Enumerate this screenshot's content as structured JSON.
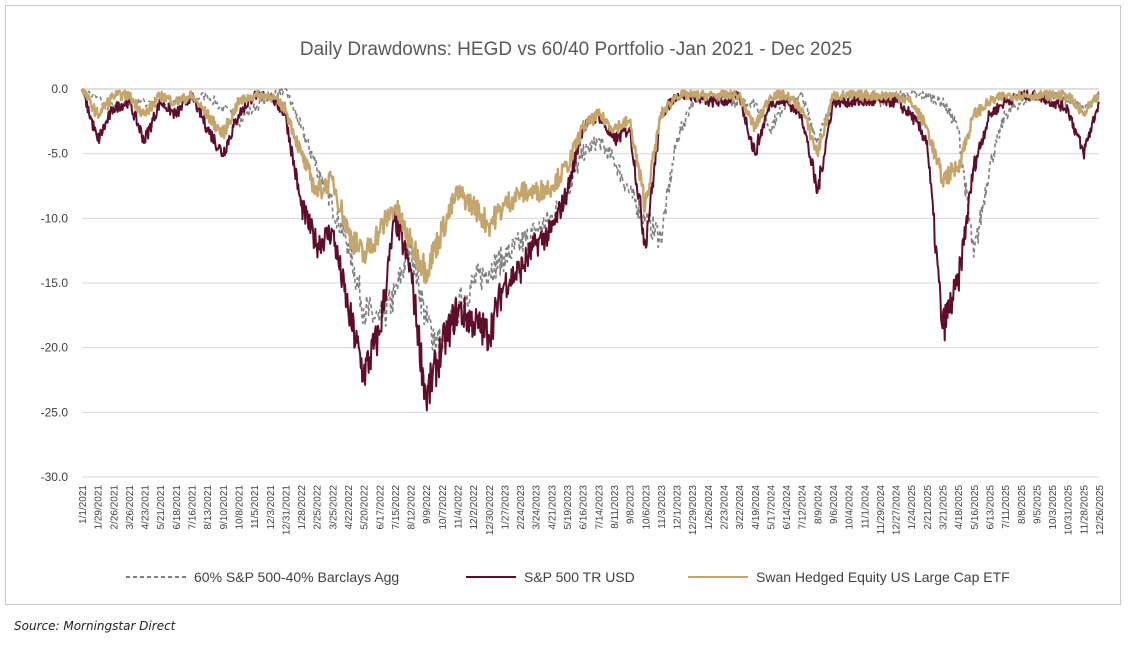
{
  "chart_data": {
    "type": "line",
    "title": "Daily Drawdowns: HEGD vs 60/40 Portfolio -Jan 2021  - Dec 2025",
    "xlabel": "",
    "ylabel": "",
    "ylim": [
      -30.0,
      0.0
    ],
    "yticks": [
      "0.0",
      "-5.0",
      "-10.0",
      "-15.0",
      "-20.0",
      "-25.0",
      "-30.0"
    ],
    "grid": true,
    "legend_position": "bottom",
    "x_tick_labels": [
      "1/1/2021",
      "1/29/2021",
      "2/26/2021",
      "3/26/2021",
      "4/23/2021",
      "5/21/2021",
      "6/18/2021",
      "7/16/2021",
      "8/13/2021",
      "9/10/2021",
      "10/8/2021",
      "11/5/2021",
      "12/3/2021",
      "12/31/2021",
      "1/28/2022",
      "2/25/2022",
      "3/25/2022",
      "4/22/2022",
      "5/20/2022",
      "6/17/2022",
      "7/15/2022",
      "8/12/2022",
      "9/9/2022",
      "10/7/2022",
      "11/4/2022",
      "12/2/2022",
      "12/30/2022",
      "1/27/2023",
      "2/24/2023",
      "3/24/2023",
      "4/21/2023",
      "5/19/2023",
      "6/16/2023",
      "7/14/2023",
      "8/11/2023",
      "9/8/2023",
      "10/6/2023",
      "11/3/2023",
      "12/1/2023",
      "12/29/2023",
      "1/26/2024",
      "2/23/2024",
      "3/22/2024",
      "4/19/2024",
      "5/17/2024",
      "6/14/2024",
      "7/12/2024",
      "8/9/2024",
      "9/6/2024",
      "10/4/2024",
      "11/1/2024",
      "11/29/2024",
      "12/27/2024",
      "1/24/2025",
      "2/21/2025",
      "3/21/2025",
      "4/18/2025",
      "5/16/2025",
      "6/13/2025",
      "7/11/2025",
      "8/8/2025",
      "9/5/2025",
      "10/3/2025",
      "10/31/2025",
      "11/28/2025",
      "12/26/2025"
    ],
    "series": [
      {
        "name": "60% S&P 500-40% Barclays Agg",
        "color": "#808080",
        "style": "dashed",
        "x_index": [
          0,
          2,
          4,
          6,
          8,
          10,
          12,
          13,
          14,
          15,
          16,
          17,
          18,
          19,
          20,
          21,
          22,
          23,
          24,
          25,
          26,
          27,
          28,
          29,
          30,
          31,
          32,
          33,
          34,
          35,
          36,
          37,
          38,
          39,
          40,
          41,
          42,
          43,
          44,
          45,
          46,
          47,
          48,
          49,
          50,
          51,
          52,
          53,
          54,
          55,
          56,
          57,
          58,
          59,
          60,
          61,
          62,
          63,
          64,
          65
        ],
        "values": [
          0,
          -1.5,
          -1,
          -1,
          -0.5,
          -2.5,
          -0.5,
          0,
          -3,
          -6,
          -9,
          -12,
          -17,
          -18,
          -16,
          -12,
          -18,
          -20,
          -17,
          -15,
          -14,
          -13,
          -12,
          -11,
          -10,
          -8,
          -5,
          -4,
          -5.5,
          -8,
          -10,
          -11.5,
          -4,
          -1,
          -0.5,
          -1,
          -1,
          -1,
          -3,
          -1,
          -0.5,
          -4,
          -1,
          -0.5,
          -0.5,
          -1,
          -0.5,
          -0.5,
          -0.5,
          -1,
          -3,
          -13,
          -6,
          -2,
          -1,
          -0.5,
          -0.5,
          -1,
          -1.5,
          -0.5
        ]
      },
      {
        "name": "S&P 500 TR USD",
        "color": "#5e0e2a",
        "style": "solid",
        "x_index": [
          0,
          1,
          2,
          3,
          4,
          5,
          6,
          7,
          8,
          9,
          10,
          11,
          12,
          13,
          14,
          15,
          16,
          17,
          18,
          19,
          20,
          21,
          22,
          23,
          24,
          25,
          26,
          27,
          28,
          29,
          30,
          31,
          32,
          33,
          34,
          35,
          36,
          37,
          38,
          39,
          40,
          41,
          42,
          43,
          44,
          45,
          46,
          47,
          48,
          49,
          50,
          51,
          52,
          53,
          54,
          55,
          56,
          57,
          58,
          59,
          60,
          61,
          62,
          63,
          64,
          65
        ],
        "values": [
          0,
          -4,
          -1.5,
          -1,
          -4,
          -1,
          -2,
          -0.5,
          -3,
          -5,
          -2,
          -0.5,
          -0.5,
          -2,
          -9,
          -12,
          -11,
          -17,
          -22,
          -19,
          -10,
          -14,
          -24,
          -20,
          -17,
          -18,
          -19,
          -15,
          -14,
          -12,
          -11,
          -8,
          -3,
          -2,
          -4,
          -3,
          -12,
          -2,
          -0.5,
          -0.5,
          -1,
          -1,
          -0.5,
          -5,
          -1,
          -1,
          -2,
          -8,
          -1,
          -1,
          -1,
          -1,
          -1,
          -2,
          -4,
          -18.5,
          -15,
          -6,
          -2,
          -1,
          -0.5,
          -0.5,
          -1,
          -1.5,
          -5,
          -1
        ]
      },
      {
        "name": "Swan Hedged Equity US Large Cap ETF",
        "color": "#c4a56c",
        "style": "solid",
        "x_index": [
          0,
          1,
          2,
          3,
          4,
          5,
          6,
          7,
          8,
          9,
          10,
          11,
          12,
          13,
          14,
          15,
          16,
          17,
          18,
          19,
          20,
          21,
          22,
          23,
          24,
          25,
          26,
          27,
          28,
          29,
          30,
          31,
          32,
          33,
          34,
          35,
          36,
          37,
          38,
          39,
          40,
          41,
          42,
          43,
          44,
          45,
          46,
          47,
          48,
          49,
          50,
          51,
          52,
          53,
          54,
          55,
          56,
          57,
          58,
          59,
          60,
          61,
          62,
          63,
          64,
          65
        ],
        "values": [
          0,
          -2,
          -0.5,
          -0.5,
          -2,
          -0.5,
          -1,
          -0.5,
          -2,
          -3.5,
          -1,
          -0.5,
          -0.5,
          -1.5,
          -5,
          -8,
          -7,
          -11,
          -13,
          -11,
          -9,
          -12,
          -14,
          -11,
          -8,
          -9,
          -10.5,
          -9,
          -8,
          -8,
          -7.5,
          -6,
          -3,
          -2,
          -3,
          -2.5,
          -9,
          -2,
          -0.5,
          -0.5,
          -0.5,
          -0.5,
          -0.5,
          -3,
          -0.5,
          -0.5,
          -1.5,
          -5,
          -0.5,
          -0.5,
          -0.5,
          -0.5,
          -0.5,
          -1,
          -3,
          -7,
          -6,
          -2,
          -1,
          -0.5,
          -0.5,
          -0.5,
          -0.5,
          -0.5,
          -2,
          -0.5
        ]
      }
    ]
  },
  "footer": {
    "source": "Source: Morningstar Direct"
  }
}
